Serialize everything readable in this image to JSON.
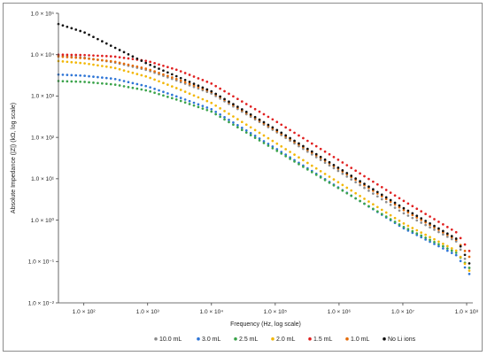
{
  "chart_data": {
    "type": "scatter",
    "title": "",
    "xlabel": "Frequency (Hz, log scale)",
    "ylabel": "Absolute Impedance (|Z|) (kΩ, log scale)",
    "x_scale": "log",
    "y_scale": "log",
    "xlim": [
      40,
      100000000
    ],
    "ylim": [
      0.01,
      100000
    ],
    "x_ticks": [
      {
        "value": 100,
        "label": "1.0 × 10²"
      },
      {
        "value": 1000,
        "label": "1.0 × 10³"
      },
      {
        "value": 10000,
        "label": "1.0 × 10⁴"
      },
      {
        "value": 100000,
        "label": "1.0 × 10⁵"
      },
      {
        "value": 1000000,
        "label": "1.0 × 10⁶"
      },
      {
        "value": 10000000,
        "label": "1.0 × 10⁷"
      },
      {
        "value": 100000000,
        "label": "1.0 × 10⁸"
      }
    ],
    "y_ticks": [
      {
        "value": 0.01,
        "label": "1.0 × 10⁻²"
      },
      {
        "value": 0.1,
        "label": "1.0 × 10⁻¹"
      },
      {
        "value": 1,
        "label": "1.0 × 10⁰"
      },
      {
        "value": 10,
        "label": "1.0 × 10¹"
      },
      {
        "value": 100,
        "label": "1.0 × 10²"
      },
      {
        "value": 1000,
        "label": "1.0 × 10³"
      },
      {
        "value": 10000,
        "label": "1.0 × 10⁴"
      },
      {
        "value": 100000,
        "label": "1.0 × 10⁵"
      }
    ],
    "grid": false,
    "legend_position": "bottom",
    "series": [
      {
        "name": "10.0 mL",
        "color": "#8c8c8c",
        "points": [
          [
            40,
            9500
          ],
          [
            100,
            8500
          ],
          [
            300,
            6500
          ],
          [
            1000,
            4200
          ],
          [
            3000,
            2300
          ],
          [
            10000,
            1150
          ],
          [
            100000,
            140
          ],
          [
            1000000,
            15
          ],
          [
            10000000,
            1.5
          ],
          [
            70000000,
            0.3
          ],
          [
            110000000,
            0.07
          ]
        ]
      },
      {
        "name": "3.0 mL",
        "color": "#2e75d6",
        "points": [
          [
            40,
            3300
          ],
          [
            100,
            3100
          ],
          [
            300,
            2600
          ],
          [
            1000,
            1700
          ],
          [
            3000,
            950
          ],
          [
            10000,
            480
          ],
          [
            100000,
            55
          ],
          [
            1000000,
            6
          ],
          [
            10000000,
            0.65
          ],
          [
            70000000,
            0.14
          ],
          [
            110000000,
            0.05
          ]
        ]
      },
      {
        "name": "2.5 mL",
        "color": "#3aa34a",
        "points": [
          [
            40,
            2300
          ],
          [
            100,
            2200
          ],
          [
            300,
            1900
          ],
          [
            1000,
            1350
          ],
          [
            3000,
            800
          ],
          [
            10000,
            420
          ],
          [
            100000,
            50
          ],
          [
            1000000,
            5.8
          ],
          [
            10000000,
            0.7
          ],
          [
            70000000,
            0.16
          ],
          [
            110000000,
            0.07
          ]
        ]
      },
      {
        "name": "2.0 mL",
        "color": "#f2b705",
        "points": [
          [
            40,
            7000
          ],
          [
            100,
            6200
          ],
          [
            300,
            4800
          ],
          [
            1000,
            2900
          ],
          [
            3000,
            1500
          ],
          [
            10000,
            680
          ],
          [
            100000,
            75
          ],
          [
            1000000,
            8
          ],
          [
            10000000,
            0.85
          ],
          [
            70000000,
            0.18
          ],
          [
            110000000,
            0.06
          ]
        ]
      },
      {
        "name": "1.5 mL",
        "color": "#e02020",
        "points": [
          [
            40,
            10000
          ],
          [
            100,
            9800
          ],
          [
            300,
            9000
          ],
          [
            1000,
            7000
          ],
          [
            3000,
            4200
          ],
          [
            10000,
            2000
          ],
          [
            100000,
            250
          ],
          [
            1000000,
            28
          ],
          [
            10000000,
            3
          ],
          [
            70000000,
            0.5
          ],
          [
            110000000,
            0.18
          ]
        ]
      },
      {
        "name": "1.0 mL",
        "color": "#e46c0a",
        "points": [
          [
            40,
            9000
          ],
          [
            100,
            8200
          ],
          [
            300,
            6800
          ],
          [
            1000,
            4500
          ],
          [
            3000,
            2500
          ],
          [
            10000,
            1250
          ],
          [
            100000,
            150
          ],
          [
            1000000,
            17
          ],
          [
            10000000,
            1.8
          ],
          [
            70000000,
            0.33
          ],
          [
            110000000,
            0.13
          ]
        ]
      },
      {
        "name": "No Li ions",
        "color": "#111111",
        "points": [
          [
            40,
            55000
          ],
          [
            100,
            35000
          ],
          [
            300,
            15000
          ],
          [
            1000,
            6000
          ],
          [
            3000,
            2900
          ],
          [
            10000,
            1300
          ],
          [
            100000,
            160
          ],
          [
            1000000,
            18
          ],
          [
            10000000,
            2
          ],
          [
            70000000,
            0.35
          ],
          [
            110000000,
            0.09
          ]
        ]
      }
    ]
  }
}
